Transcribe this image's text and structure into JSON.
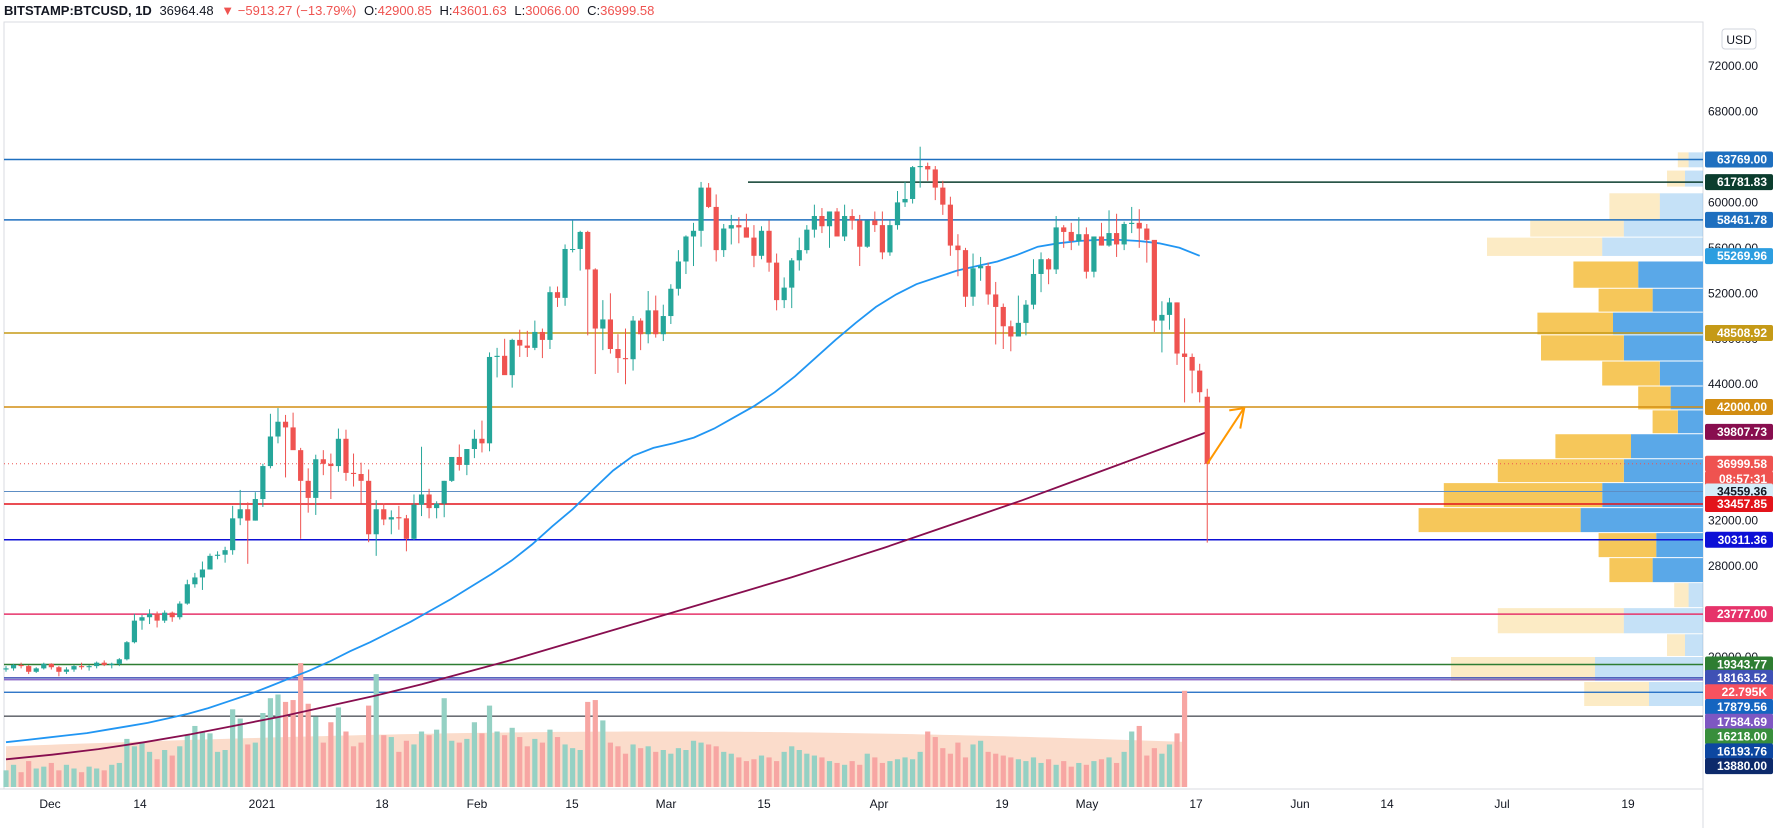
{
  "header": {
    "symbol": "BITSTAMP:BTCUSD, 1D",
    "last": "36964.48",
    "change": "▼ −5913.27 (−13.79%)",
    "open_label": "O:",
    "open": "42900.85",
    "high_label": "H:",
    "high": "43601.63",
    "low_label": "L:",
    "low": "30066.00",
    "close_label": "C:",
    "close": "36999.58"
  },
  "currency_button": "USD",
  "chart_data": {
    "type": "candlestick",
    "price_axis": {
      "ticks": [
        72000,
        68000,
        64000,
        60000,
        56000,
        52000,
        48000,
        44000,
        40000,
        36000,
        32000,
        28000,
        24000,
        20000
      ],
      "visible_range": [
        13000,
        74000
      ]
    },
    "time_axis": {
      "labels": [
        "Dec",
        "14",
        "2021",
        "18",
        "Feb",
        "15",
        "Mar",
        "15",
        "Apr",
        "19",
        "May",
        "17",
        "Jun",
        "14",
        "Jul",
        "19"
      ]
    },
    "candles_daily_ohlc": [
      [
        18900,
        19200,
        18700,
        19000
      ],
      [
        19000,
        19400,
        18800,
        19300
      ],
      [
        19300,
        19500,
        19000,
        19200
      ],
      [
        19200,
        19300,
        18500,
        18700
      ],
      [
        18700,
        19100,
        18600,
        19000
      ],
      [
        19000,
        19500,
        18900,
        19400
      ],
      [
        19400,
        19450,
        18900,
        19100
      ],
      [
        19100,
        19200,
        18300,
        18700
      ],
      [
        18700,
        19100,
        18500,
        18900
      ],
      [
        18900,
        19300,
        18700,
        19200
      ],
      [
        19200,
        19500,
        18900,
        19100
      ],
      [
        19100,
        19300,
        18800,
        19200
      ],
      [
        19200,
        19600,
        19000,
        19500
      ],
      [
        19500,
        19700,
        19200,
        19300
      ],
      [
        19300,
        19500,
        19000,
        19400
      ],
      [
        19400,
        19900,
        19200,
        19800
      ],
      [
        19800,
        21400,
        19700,
        21300
      ],
      [
        21300,
        23800,
        21200,
        23200
      ],
      [
        23200,
        23700,
        22400,
        23500
      ],
      [
        23500,
        24200,
        22900,
        23800
      ],
      [
        23800,
        24000,
        22600,
        23200
      ],
      [
        23200,
        24100,
        23000,
        23900
      ],
      [
        23900,
        24000,
        23100,
        23500
      ],
      [
        23500,
        24900,
        23300,
        24700
      ],
      [
        24700,
        26800,
        24600,
        26400
      ],
      [
        26400,
        27400,
        26100,
        27000
      ],
      [
        27000,
        28400,
        25900,
        27700
      ],
      [
        27700,
        29100,
        27700,
        28900
      ],
      [
        28900,
        29300,
        28600,
        29000
      ],
      [
        29000,
        29700,
        28300,
        29400
      ],
      [
        29400,
        33300,
        29000,
        32200
      ],
      [
        32200,
        34700,
        31600,
        33000
      ],
      [
        33000,
        33600,
        28200,
        32000
      ],
      [
        32000,
        34500,
        32000,
        33900
      ],
      [
        33900,
        37000,
        33200,
        36800
      ],
      [
        36800,
        41400,
        36600,
        39400
      ],
      [
        39400,
        41900,
        38800,
        40700
      ],
      [
        40700,
        41300,
        35800,
        40200
      ],
      [
        40200,
        41500,
        38500,
        38200
      ],
      [
        38200,
        38400,
        30400,
        35500
      ],
      [
        35500,
        36600,
        32700,
        34000
      ],
      [
        34000,
        37800,
        32500,
        37400
      ],
      [
        37400,
        38200,
        36000,
        37000
      ],
      [
        37000,
        37900,
        33900,
        36800
      ],
      [
        36800,
        40100,
        36300,
        39200
      ],
      [
        39200,
        40000,
        35500,
        36200
      ],
      [
        36200,
        37900,
        35000,
        36100
      ],
      [
        36100,
        37100,
        33500,
        35500
      ],
      [
        35500,
        36500,
        30100,
        30800
      ],
      [
        30800,
        33800,
        28900,
        33000
      ],
      [
        33000,
        33500,
        31600,
        32100
      ],
      [
        32100,
        32900,
        30800,
        32300
      ],
      [
        32300,
        33300,
        31200,
        32200
      ],
      [
        32200,
        32500,
        29300,
        30400
      ],
      [
        30400,
        34300,
        30300,
        33400
      ],
      [
        33400,
        38500,
        32400,
        34300
      ],
      [
        34300,
        34800,
        32200,
        33100
      ],
      [
        33100,
        33700,
        32200,
        33500
      ],
      [
        33500,
        35500,
        32300,
        35500
      ],
      [
        35500,
        37600,
        35400,
        37600
      ],
      [
        37600,
        38700,
        36400,
        36900
      ],
      [
        36900,
        38300,
        36000,
        38300
      ],
      [
        38300,
        40000,
        37500,
        39200
      ],
      [
        39200,
        40800,
        38000,
        38800
      ],
      [
        38800,
        46800,
        38100,
        46400
      ],
      [
        46400,
        47200,
        44600,
        46500
      ],
      [
        46500,
        48000,
        45200,
        44800
      ],
      [
        44800,
        48000,
        43700,
        47900
      ],
      [
        47900,
        48800,
        46400,
        47400
      ],
      [
        47400,
        48700,
        46400,
        47200
      ],
      [
        47200,
        49600,
        47000,
        48600
      ],
      [
        48600,
        48900,
        46300,
        47900
      ],
      [
        47900,
        52600,
        47100,
        52100
      ],
      [
        52100,
        52600,
        50800,
        51600
      ],
      [
        51600,
        56300,
        50900,
        55900
      ],
      [
        55900,
        58400,
        55600,
        55900
      ],
      [
        55900,
        57500,
        54000,
        57400
      ],
      [
        57400,
        57500,
        48300,
        54100
      ],
      [
        54100,
        54200,
        44900,
        48900
      ],
      [
        48900,
        51400,
        47000,
        49700
      ],
      [
        49700,
        52000,
        46700,
        47100
      ],
      [
        47100,
        48400,
        45000,
        46300
      ],
      [
        46300,
        48900,
        44000,
        46200
      ],
      [
        46200,
        50000,
        45200,
        49600
      ],
      [
        49600,
        49800,
        47000,
        48400
      ],
      [
        48400,
        52200,
        47600,
        50500
      ],
      [
        50500,
        51800,
        48100,
        48400
      ],
      [
        48400,
        51000,
        47800,
        50000
      ],
      [
        50000,
        52800,
        49300,
        52400
      ],
      [
        52400,
        55800,
        51800,
        54800
      ],
      [
        54800,
        57100,
        53700,
        57000
      ],
      [
        57000,
        58200,
        54400,
        57500
      ],
      [
        57500,
        61800,
        56100,
        61300
      ],
      [
        61300,
        61700,
        59500,
        59600
      ],
      [
        59600,
        60700,
        54800,
        55800
      ],
      [
        55800,
        58100,
        55200,
        57700
      ],
      [
        57700,
        58900,
        56300,
        58000
      ],
      [
        58000,
        58700,
        56400,
        57800
      ],
      [
        57800,
        59000,
        57000,
        56900
      ],
      [
        56900,
        58000,
        54300,
        55300
      ],
      [
        55300,
        57900,
        55000,
        57500
      ],
      [
        57500,
        58400,
        53900,
        54700
      ],
      [
        54700,
        55500,
        50500,
        51400
      ],
      [
        51400,
        53400,
        50700,
        52500
      ],
      [
        52500,
        55100,
        50700,
        54900
      ],
      [
        54900,
        56900,
        54000,
        55800
      ],
      [
        55800,
        58000,
        55500,
        57600
      ],
      [
        57600,
        59800,
        56900,
        58800
      ],
      [
        58800,
        59500,
        57300,
        57900
      ],
      [
        57900,
        59200,
        56000,
        59200
      ],
      [
        59200,
        59500,
        57600,
        57000
      ],
      [
        57000,
        59800,
        56600,
        58800
      ],
      [
        58800,
        59400,
        57600,
        58400
      ],
      [
        58400,
        58900,
        54400,
        56100
      ],
      [
        56100,
        58400,
        56000,
        58400
      ],
      [
        58400,
        59200,
        57400,
        58000
      ],
      [
        58000,
        59200,
        55000,
        55600
      ],
      [
        55600,
        58400,
        55300,
        58000
      ],
      [
        58000,
        61000,
        57600,
        60000
      ],
      [
        60000,
        61800,
        59600,
        60300
      ],
      [
        60300,
        63200,
        59900,
        63100
      ],
      [
        63100,
        64900,
        61300,
        63200
      ],
      [
        63200,
        63500,
        61900,
        62900
      ],
      [
        62900,
        63200,
        60200,
        61300
      ],
      [
        61300,
        61900,
        58900,
        59800
      ],
      [
        59800,
        60500,
        55300,
        56200
      ],
      [
        56200,
        57200,
        53500,
        55800
      ],
      [
        55800,
        56000,
        50800,
        51700
      ],
      [
        51700,
        55500,
        50900,
        54200
      ],
      [
        54200,
        55200,
        53100,
        54400
      ],
      [
        54400,
        54700,
        51000,
        51900
      ],
      [
        51900,
        53000,
        47500,
        50800
      ],
      [
        50800,
        51100,
        47100,
        49100
      ],
      [
        49100,
        49600,
        46900,
        48200
      ],
      [
        48200,
        51800,
        48200,
        49400
      ],
      [
        49400,
        51400,
        48300,
        51000
      ],
      [
        51000,
        55000,
        50600,
        53700
      ],
      [
        53700,
        55600,
        52100,
        55000
      ],
      [
        55000,
        55100,
        52800,
        54100
      ],
      [
        54100,
        58800,
        53700,
        57800
      ],
      [
        57800,
        58000,
        56000,
        57400
      ],
      [
        57400,
        58200,
        55800,
        56600
      ],
      [
        56600,
        58700,
        56200,
        57200
      ],
      [
        57200,
        57800,
        53300,
        53900
      ],
      [
        53900,
        57000,
        53400,
        57000
      ],
      [
        57000,
        58200,
        56200,
        56200
      ],
      [
        56200,
        59300,
        56100,
        57300
      ],
      [
        57300,
        59000,
        55200,
        56300
      ],
      [
        56300,
        58300,
        55800,
        58100
      ],
      [
        58100,
        59600,
        57300,
        58200
      ],
      [
        58200,
        59400,
        56000,
        57700
      ],
      [
        57700,
        58100,
        54700,
        56700
      ],
      [
        56700,
        56600,
        48600,
        49600
      ],
      [
        49600,
        51300,
        46800,
        50100
      ],
      [
        50100,
        51600,
        48800,
        51200
      ],
      [
        51200,
        51200,
        45700,
        46700
      ],
      [
        46700,
        49800,
        42400,
        46400
      ],
      [
        46400,
        46700,
        43200,
        45200
      ],
      [
        45200,
        45800,
        42400,
        43300
      ],
      [
        42900,
        43600,
        30066,
        36999.58
      ]
    ],
    "sma_50": [
      12500,
      12700,
      12900,
      13100,
      13300,
      13600,
      13900,
      14200,
      14600,
      15000,
      15500,
      16100,
      16700,
      17400,
      18100,
      18800,
      19600,
      20500,
      21300,
      22200,
      23100,
      24100,
      25100,
      26200,
      27300,
      28500,
      29900,
      31500,
      33000,
      34700,
      36400,
      37700,
      38400,
      38800,
      39300,
      40100,
      41100,
      42100,
      43300,
      44700,
      46300,
      47900,
      49400,
      50800,
      51900,
      52800,
      53400,
      54000,
      54400,
      54800,
      55400,
      56100,
      56400,
      56600,
      56700,
      56700,
      56600,
      56400,
      56000,
      55300
    ],
    "sma_200": [
      11000,
      11400,
      11900,
      12500,
      13200,
      14000,
      14800,
      15700,
      16600,
      17600,
      18700,
      19800,
      21000,
      22200,
      23400,
      24600,
      25800,
      27000,
      28300,
      29600,
      31000,
      32400,
      33800,
      35300,
      36800,
      38300,
      39800
    ],
    "volume_profile_right_edge_levels": [
      63769,
      61781.83,
      58461.78,
      55269.96,
      48508.92,
      42000,
      36999.58,
      34559.36,
      33457.85,
      30311.36,
      23777,
      19343.77,
      18163.52
    ],
    "volume_sma_label": "22.795K",
    "volume_values_k": [
      9,
      12,
      8,
      14,
      10,
      11,
      13,
      9,
      12,
      10,
      8,
      11,
      10,
      9,
      12,
      13,
      26,
      22,
      24,
      19,
      15,
      20,
      17,
      22,
      28,
      33,
      30,
      29,
      19,
      20,
      42,
      37,
      23,
      24,
      40,
      48,
      50,
      46,
      47,
      67,
      45,
      38,
      24,
      35,
      43,
      30,
      22,
      24,
      44,
      61,
      28,
      27,
      19,
      25,
      23,
      30,
      28,
      31,
      48,
      25,
      24,
      26,
      35,
      29,
      44,
      30,
      28,
      32,
      27,
      22,
      26,
      24,
      31,
      27,
      23,
      21,
      20,
      46,
      47,
      36,
      24,
      22,
      18,
      23,
      21,
      22,
      19,
      20,
      18,
      21,
      20,
      25,
      24,
      23,
      22,
      19,
      18,
      16,
      14,
      15,
      17,
      16,
      14,
      19,
      22,
      20,
      18,
      17,
      16,
      14,
      13,
      12,
      14,
      12,
      18,
      16,
      13,
      14,
      15,
      16,
      15,
      19,
      30,
      27,
      21,
      18,
      24,
      16,
      23,
      25,
      19,
      18,
      17,
      16,
      15,
      14,
      16,
      13,
      15,
      12,
      14,
      11,
      13,
      12,
      14,
      15,
      16,
      13,
      19,
      30,
      33,
      17,
      21,
      18,
      23,
      29,
      52
    ]
  },
  "price_levels": [
    {
      "value": "63769.00",
      "price": 63769,
      "color": "#1e6fbf",
      "text": "#ffffff"
    },
    {
      "value": "61781.83",
      "price": 61781.83,
      "color": "#0b3d2e",
      "text": "#ffffff"
    },
    {
      "value": "58461.78",
      "price": 58461.78,
      "color": "#1e6fbf",
      "text": "#ffffff"
    },
    {
      "value": "55269.96",
      "price": 55269.96,
      "color": "#2d9ee0",
      "text": "#ffffff"
    },
    {
      "value": "48508.92",
      "price": 48508.92,
      "color": "#c59a17",
      "text": "#ffffff"
    },
    {
      "value": "42000.00",
      "price": 42000,
      "color": "#d28d12",
      "text": "#ffffff"
    },
    {
      "value": "39807.73",
      "price": 39807.73,
      "color": "#880e4f",
      "text": "#ffffff"
    },
    {
      "value": "36999.58",
      "price": 36999.58,
      "color": "#ef5350",
      "text": "#ffffff"
    },
    {
      "value": "08:57:31",
      "price": 35650,
      "color": "#ef5350",
      "text": "#ffffff"
    },
    {
      "value": "34559.36",
      "price": 34559.36,
      "color": "#d6ecf8",
      "text": "#131722"
    },
    {
      "value": "33457.85",
      "price": 33457.85,
      "color": "#e3141b",
      "text": "#ffffff"
    },
    {
      "value": "30311.36",
      "price": 30311.36,
      "color": "#0d10d6",
      "text": "#ffffff"
    },
    {
      "value": "23777.00",
      "price": 23777,
      "color": "#e6336a",
      "text": "#ffffff"
    },
    {
      "value": "19343.77",
      "price": 19343.77,
      "color": "#2e7d32",
      "text": "#ffffff"
    },
    {
      "value": "18163.52",
      "price": 18163.52,
      "color": "#3f51b5",
      "text": "#ffffff"
    },
    {
      "value": "22.795K",
      "price": 16900,
      "color": "#f7525f",
      "text": "#ffffff"
    },
    {
      "value": "17879.56",
      "price": 15600,
      "color": "#1565c0",
      "text": "#ffffff"
    },
    {
      "value": "17584.69",
      "price": 14300,
      "color": "#7e57c2",
      "text": "#ffffff"
    },
    {
      "value": "16218.00",
      "price": 13000,
      "color": "#388e3c",
      "text": "#ffffff"
    },
    {
      "value": "16193.76",
      "price": 11700,
      "color": "#0d47a1",
      "text": "#ffffff"
    },
    {
      "value": "13880.00",
      "price": 10400,
      "color": "#0d2a6b",
      "text": "#ffffff"
    }
  ],
  "colors": {
    "up": "#26a69a",
    "down": "#ef5350",
    "sma50": "#2196f3",
    "sma200": "#880e4f",
    "vol_up": "#95d1c4",
    "vol_down": "#f7a6a3",
    "vp_up": "#5aa8e8",
    "vp_down": "#f6c75a",
    "arrow": "#ff9800"
  }
}
